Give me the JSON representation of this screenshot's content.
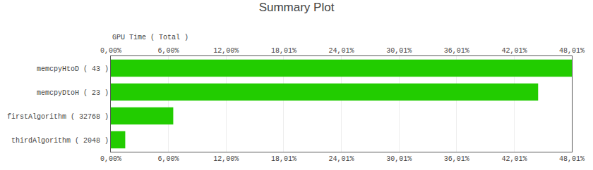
{
  "chart_data": {
    "type": "bar",
    "orientation": "horizontal",
    "title": "Summary Plot",
    "xlabel": "GPU Time ( Total )",
    "categories": [
      "memcpyHtoD ( 43 )",
      "memcpyDtoH ( 23 )",
      "firstAlgorithm ( 32768 )",
      "thirdAlgorithm ( 2048 )"
    ],
    "values": [
      48.01,
      44.5,
      6.5,
      1.5
    ],
    "color": "#22cc00",
    "xlim": [
      0,
      48.01
    ],
    "xticks": [
      {
        "value": 0.0,
        "label": "0,00%"
      },
      {
        "value": 6.0,
        "label": "6,00%"
      },
      {
        "value": 12.0,
        "label": "12,00%"
      },
      {
        "value": 18.01,
        "label": "18,01%"
      },
      {
        "value": 24.01,
        "label": "24,01%"
      },
      {
        "value": 30.01,
        "label": "30,01%"
      },
      {
        "value": 36.01,
        "label": "36,01%"
      },
      {
        "value": 42.01,
        "label": "42,01%"
      },
      {
        "value": 48.01,
        "label": "48,01%"
      }
    ],
    "grid": true
  }
}
